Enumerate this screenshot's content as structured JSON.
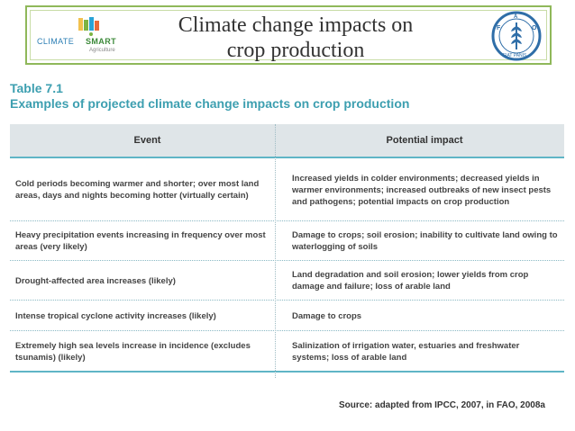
{
  "header": {
    "title_line1": "Climate change impacts on",
    "title_line2": "crop production",
    "csa_logo": {
      "word1": "CLIMATE",
      "word2": "SMART",
      "word3": "Agriculture"
    },
    "fao_logo": {
      "icon": "fao-emblem-icon",
      "lettering": "FAO · FIAT PANIS"
    }
  },
  "table": {
    "label": "Table 7.1",
    "caption": "Examples of projected climate change impacts on crop production",
    "columns": {
      "event": "Event",
      "impact": "Potential impact"
    },
    "rows": [
      {
        "event": "Cold periods becoming warmer and shorter; over most land areas, days and nights becoming hotter (virtually certain)",
        "impact": "Increased yields in colder environments; decreased yields in warmer environments; increased outbreaks of new insect pests and pathogens; potential impacts on crop production"
      },
      {
        "event": "Heavy precipitation events increasing in frequency over most areas (very likely)",
        "impact": "Damage to crops; soil erosion; inability to cultivate land owing to waterlogging of soils"
      },
      {
        "event": "Drought-affected area increases (likely)",
        "impact": "Land degradation and soil erosion; lower yields from crop damage and failure; loss of arable land"
      },
      {
        "event": "Intense tropical cyclone activity increases (likely)",
        "impact": "Damage to crops"
      },
      {
        "event": "Extremely high sea levels increase in incidence (excludes tsunamis) (likely)",
        "impact": "Salinization of irrigation water, estuaries and freshwater systems; loss of arable land"
      }
    ],
    "source": "Source: adapted from IPCC, 2007, in FAO, 2008a"
  },
  "colors": {
    "accent_teal": "#3d9fb0",
    "header_border": "#8fb85a",
    "table_header_bg": "#dfe5e8"
  }
}
